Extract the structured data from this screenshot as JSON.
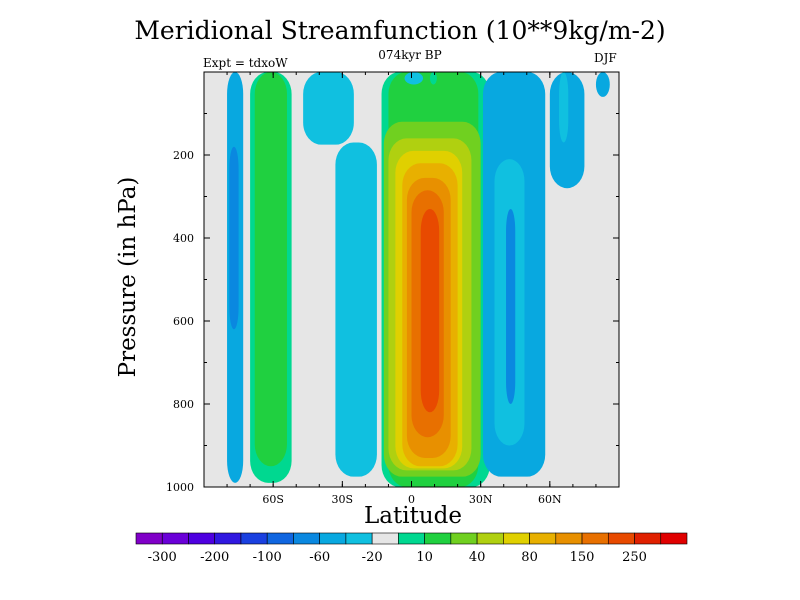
{
  "header": {
    "title": "Meridional Streamfunction (10**9kg/m-2)",
    "subtitle": "074kyr BP",
    "left_label": "Expt = tdxoW",
    "right_label": "DJF"
  },
  "chart_data": {
    "type": "heatmap",
    "title": "Meridional Streamfunction (10**9kg/m-2)",
    "subtitle": "074kyr BP",
    "xlabel": "Latitude",
    "ylabel": "Pressure (in hPa)",
    "xlim": [
      -90,
      90
    ],
    "ylim": [
      1000,
      0
    ],
    "y_inverted": true,
    "x_ticks": [
      {
        "value": -60,
        "label": "60S"
      },
      {
        "value": -30,
        "label": "30S"
      },
      {
        "value": 0,
        "label": "0"
      },
      {
        "value": 30,
        "label": "30N"
      },
      {
        "value": 60,
        "label": "60N"
      }
    ],
    "y_ticks": [
      {
        "value": 200,
        "label": "200"
      },
      {
        "value": 400,
        "label": "400"
      },
      {
        "value": 600,
        "label": "600"
      },
      {
        "value": 800,
        "label": "800"
      },
      {
        "value": 1000,
        "label": "1000"
      }
    ],
    "missing_color": "#e6e6e6",
    "colorbar": {
      "colors": [
        "#8000c8",
        "#6a00d8",
        "#4e00e0",
        "#3018e0",
        "#1a40e0",
        "#1066e0",
        "#0a88e0",
        "#08a8e0",
        "#10c0e0",
        "#e6e6e6",
        "#00d890",
        "#20d040",
        "#70d020",
        "#b0d010",
        "#e0d000",
        "#e8b000",
        "#e89000",
        "#e87000",
        "#e84a00",
        "#e02000",
        "#e00000"
      ],
      "labels": [
        {
          "boundary": 1,
          "text": "-300"
        },
        {
          "boundary": 3,
          "text": "-200"
        },
        {
          "boundary": 5,
          "text": "-100"
        },
        {
          "boundary": 7,
          "text": "-60"
        },
        {
          "boundary": 9,
          "text": "-20"
        },
        {
          "boundary": 11,
          "text": "10"
        },
        {
          "boundary": 13,
          "text": "40"
        },
        {
          "boundary": 15,
          "text": "80"
        },
        {
          "boundary": 17,
          "text": "150"
        },
        {
          "boundary": 19,
          "text": "250"
        }
      ]
    },
    "cells": [
      {
        "lat": [
          -80,
          -73
        ],
        "p": [
          0,
          990
        ],
        "color": "#08a8e0"
      },
      {
        "lat": [
          -79,
          -75
        ],
        "p": [
          180,
          620
        ],
        "color": "#0a88e0"
      },
      {
        "lat": [
          -70,
          -52
        ],
        "p": [
          0,
          990
        ],
        "color": "#00d890"
      },
      {
        "lat": [
          -68,
          -54
        ],
        "p": [
          0,
          950
        ],
        "color": "#20d040"
      },
      {
        "lat": [
          -47,
          -25
        ],
        "p": [
          0,
          175
        ],
        "color": "#10c0e0"
      },
      {
        "lat": [
          -33,
          -15
        ],
        "p": [
          170,
          975
        ],
        "color": "#10c0e0"
      },
      {
        "lat": [
          -13,
          34
        ],
        "p": [
          0,
          1000
        ],
        "color": "#00d890"
      },
      {
        "lat": [
          -10,
          29
        ],
        "p": [
          0,
          1000
        ],
        "color": "#20d040"
      },
      {
        "lat": [
          -12,
          30
        ],
        "p": [
          120,
          975
        ],
        "color": "#70d020"
      },
      {
        "lat": [
          -10,
          26
        ],
        "p": [
          160,
          960
        ],
        "color": "#b0d010"
      },
      {
        "lat": [
          -7,
          22
        ],
        "p": [
          190,
          955
        ],
        "color": "#e0d000"
      },
      {
        "lat": [
          -4,
          20
        ],
        "p": [
          220,
          950
        ],
        "color": "#e8b000"
      },
      {
        "lat": [
          -2,
          17
        ],
        "p": [
          255,
          930
        ],
        "color": "#e89000"
      },
      {
        "lat": [
          0,
          14
        ],
        "p": [
          285,
          880
        ],
        "color": "#e87000"
      },
      {
        "lat": [
          4,
          12
        ],
        "p": [
          330,
          820
        ],
        "color": "#e84a00"
      },
      {
        "lat": [
          -3,
          5
        ],
        "p": [
          0,
          30
        ],
        "color": "#10c0e0"
      },
      {
        "lat": [
          8,
          11
        ],
        "p": [
          0,
          30
        ],
        "color": "#00d890"
      },
      {
        "lat": [
          31,
          58
        ],
        "p": [
          0,
          975
        ],
        "color": "#08a8e0"
      },
      {
        "lat": [
          36,
          49
        ],
        "p": [
          210,
          900
        ],
        "color": "#10c0e0"
      },
      {
        "lat": [
          41,
          45
        ],
        "p": [
          330,
          800
        ],
        "color": "#0a88e0"
      },
      {
        "lat": [
          60,
          75
        ],
        "p": [
          0,
          280
        ],
        "color": "#08a8e0"
      },
      {
        "lat": [
          64,
          68
        ],
        "p": [
          0,
          170
        ],
        "color": "#10c0e0"
      },
      {
        "lat": [
          80,
          86
        ],
        "p": [
          0,
          60
        ],
        "color": "#08a8e0"
      }
    ]
  }
}
